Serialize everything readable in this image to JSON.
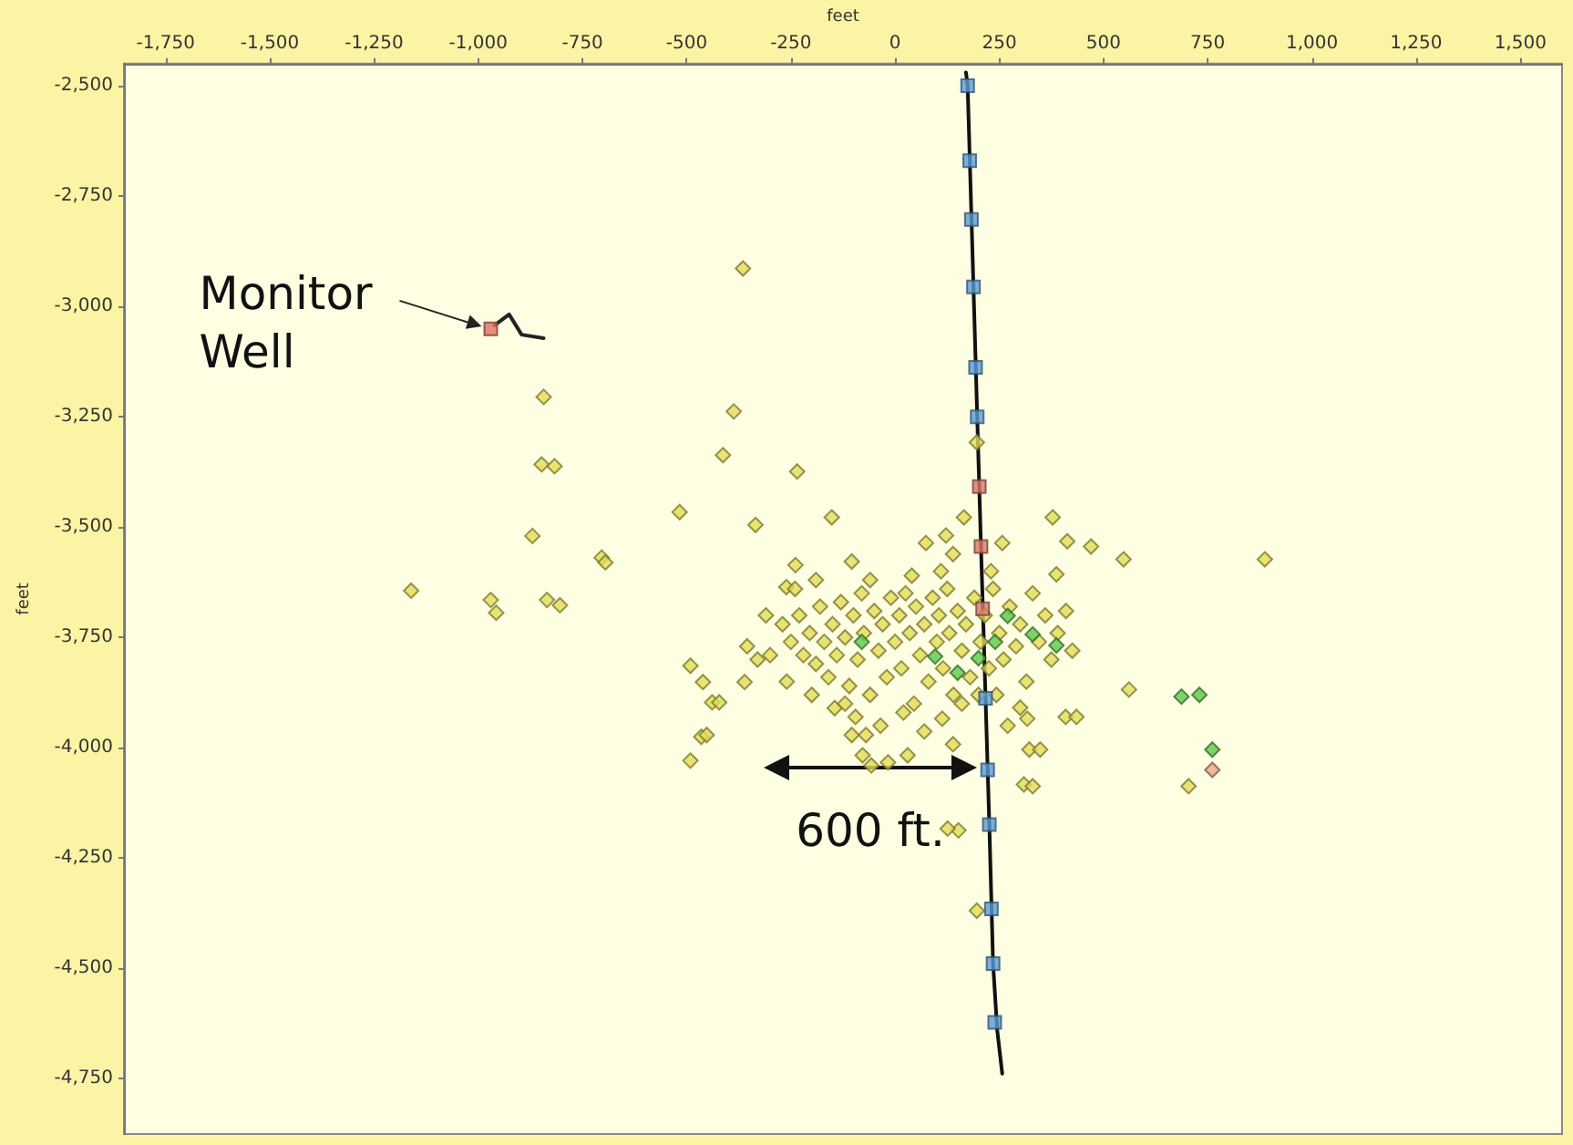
{
  "chart_data": {
    "type": "scatter",
    "xlabel": "feet",
    "ylabel": "feet",
    "marker": "diamond",
    "grid": false,
    "xlim": [
      -1850,
      1600
    ],
    "ylim": [
      -4875,
      -2450
    ],
    "xticks": [
      {
        "value": -1750,
        "label": "-1,750"
      },
      {
        "value": -1500,
        "label": "-1,500"
      },
      {
        "value": -1250,
        "label": "-1,250"
      },
      {
        "value": -1000,
        "label": "-1,000"
      },
      -750,
      -500,
      -250,
      0,
      250,
      500,
      750,
      {
        "value": 1000,
        "label": "1,000"
      },
      {
        "value": 1250,
        "label": "1,250"
      },
      {
        "value": 1500,
        "label": "1,500"
      }
    ],
    "yticks": [
      {
        "value": -2500,
        "label": "-2,500"
      },
      {
        "value": -2750,
        "label": "-2,750"
      },
      {
        "value": -3000,
        "label": "-3,000"
      },
      {
        "value": -3250,
        "label": "-3,250"
      },
      {
        "value": -3500,
        "label": "-3,500"
      },
      {
        "value": -3750,
        "label": "-3,750"
      },
      {
        "value": -4000,
        "label": "-4,000"
      },
      {
        "value": -4250,
        "label": "-4,250"
      },
      {
        "value": -4500,
        "label": "-4,500"
      },
      {
        "value": -4750,
        "label": "-4,750"
      }
    ],
    "annotations": [
      {
        "text": "Monitor Well",
        "x": -970,
        "y": -3045
      },
      "600 ft."
    ],
    "series": [
      {
        "type": "scatter",
        "color": "#e2dc58",
        "x": [
          -365,
          -843,
          -848,
          -817,
          -870,
          -704,
          -695,
          -1161,
          -970,
          -957,
          -835,
          -804,
          -387,
          -413,
          -235,
          -517,
          -335,
          -152,
          -239,
          -104,
          -261,
          -491,
          -461,
          -439,
          -465,
          -491,
          -361,
          -452,
          -422,
          74,
          122,
          139,
          165,
          257,
          378,
          413,
          470,
          548,
          887,
          387,
          561,
          409,
          317,
          322,
          309,
          152,
          196,
          330,
          348,
          435,
          704,
          196,
          -78,
          -17,
          30,
          -104,
          -70,
          70,
          139,
          113,
          243,
          270,
          300,
          126,
          -57,
          -270,
          -250,
          -230,
          -220,
          -205,
          -190,
          -180,
          -170,
          -160,
          -150,
          -140,
          -130,
          -120,
          -110,
          -100,
          -90,
          -80,
          -75,
          -60,
          -50,
          -40,
          -30,
          -20,
          -10,
          0,
          10,
          15,
          25,
          35,
          45,
          50,
          60,
          70,
          80,
          90,
          100,
          105,
          115,
          125,
          130,
          140,
          150,
          160,
          170,
          180,
          190,
          205,
          215,
          225,
          235,
          250,
          260,
          275,
          290,
          300,
          315,
          330,
          345,
          360,
          375,
          390,
          410,
          425,
          -260,
          -200,
          -145,
          -95,
          -35,
          20,
          -300,
          -240,
          -60,
          40,
          110,
          230,
          -190,
          -120,
          160,
          200,
          -330,
          -355,
          -310
        ],
        "values": [
          -2914,
          -3205,
          -3358,
          -3362,
          -3520,
          -3569,
          -3580,
          -3644,
          -3665,
          -3694,
          -3665,
          -3677,
          -3238,
          -3337,
          -3374,
          -3466,
          -3495,
          -3478,
          -3586,
          -3578,
          -3636,
          -3814,
          -3851,
          -3897,
          -3975,
          -4029,
          -3851,
          -3971,
          -3897,
          -3536,
          -3519,
          -3561,
          -3478,
          -3536,
          -3478,
          -3532,
          -3544,
          -3573,
          -3573,
          -3607,
          -3868,
          -3930,
          -3934,
          -4004,
          -4083,
          -4187,
          -4369,
          -4087,
          -4004,
          -3930,
          -4087,
          -3308,
          -4017,
          -4033,
          -4017,
          -3971,
          -3971,
          -3963,
          -3992,
          -3934,
          -3880,
          -3950,
          -3909,
          -4183,
          -4040,
          -3720,
          -3760,
          -3700,
          -3790,
          -3740,
          -3810,
          -3680,
          -3760,
          -3840,
          -3720,
          -3790,
          -3670,
          -3750,
          -3860,
          -3700,
          -3800,
          -3650,
          -3740,
          -3880,
          -3690,
          -3780,
          -3720,
          -3840,
          -3660,
          -3760,
          -3700,
          -3820,
          -3650,
          -3740,
          -3900,
          -3680,
          -3790,
          -3720,
          -3850,
          -3660,
          -3760,
          -3700,
          -3820,
          -3640,
          -3740,
          -3880,
          -3690,
          -3780,
          -3720,
          -3840,
          -3660,
          -3760,
          -3700,
          -3820,
          -3640,
          -3740,
          -3800,
          -3680,
          -3770,
          -3720,
          -3850,
          -3650,
          -3760,
          -3700,
          -3800,
          -3740,
          -3690,
          -3780,
          -3850,
          -3880,
          -3910,
          -3930,
          -3950,
          -3920,
          -3790,
          -3640,
          -3620,
          -3610,
          -3600,
          -3600,
          -3620,
          -3900,
          -3900,
          -3880,
          -3800,
          -3770,
          -3700
        ]
      },
      {
        "type": "scatter",
        "color": "#5cc84a",
        "x": [
          687,
          730,
          761,
          330,
          96,
          200,
          270,
          387,
          -80,
          150,
          240
        ],
        "values": [
          -3884,
          -3880,
          -4004,
          -3743,
          -3793,
          -3797,
          -3701,
          -3768,
          -3760,
          -3830,
          -3760
        ]
      },
      {
        "type": "scatter",
        "color": "#e8a88a",
        "x": [
          761
        ],
        "values": [
          -4050
        ]
      },
      {
        "type": "line",
        "color": "#111111",
        "marker": "none",
        "x": [
          170,
          174,
          188,
          197,
          206,
          217,
          226,
          235,
          245,
          257
        ],
        "values": [
          -2470,
          -2500,
          -2956,
          -3250,
          -3544,
          -3888,
          -4174,
          -4489,
          -4640,
          -4738
        ]
      },
      {
        "type": "line",
        "color": "#222222",
        "marker": "none",
        "x": [
          -961,
          -926,
          -896,
          -843
        ],
        "values": [
          -3043,
          -3018,
          -3064,
          -3072
        ]
      },
      {
        "type": "scatter",
        "color": "#e07060",
        "marker": "square",
        "x": [
          -970
        ],
        "values": [
          -3051
        ]
      },
      {
        "type": "scatter",
        "color": "#5b9bd5",
        "marker": "square",
        "x": [
          174,
          179,
          183,
          188,
          193,
          197,
          217,
          222,
          226,
          231,
          235,
          239
        ],
        "values": [
          -2500,
          -2670,
          -2803,
          -2956,
          -3138,
          -3250,
          -3888,
          -4050,
          -4174,
          -4365,
          -4489,
          -4622
        ]
      },
      {
        "type": "scatter",
        "color": "#d9786a",
        "marker": "square",
        "x": [
          202,
          206,
          210
        ],
        "values": [
          -3408,
          -3544,
          -3685
        ]
      }
    ]
  }
}
